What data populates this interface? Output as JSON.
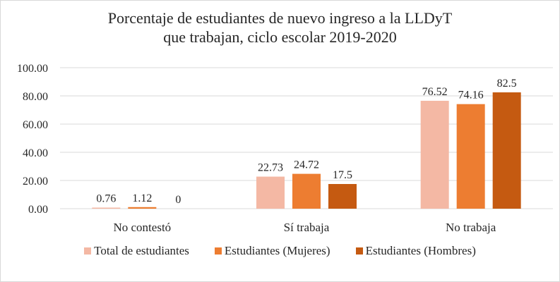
{
  "chart_data": {
    "type": "bar",
    "title_lines": [
      "Porcentaje de estudiantes de nuevo ingreso a la LLDyT",
      "que trabajan, ciclo escolar 2019-2020"
    ],
    "categories": [
      "No contestó",
      "Sí trabaja",
      "No trabaja"
    ],
    "series": [
      {
        "name": "Total de estudiantes",
        "color": "#F4B8A4",
        "values": [
          0.76,
          22.73,
          76.52
        ],
        "labels": [
          "0.76",
          "22.73",
          "76.52"
        ]
      },
      {
        "name": "Estudiantes (Mujeres)",
        "color": "#ED7D31",
        "values": [
          1.12,
          24.72,
          74.16
        ],
        "labels": [
          "1.12",
          "24.72",
          "74.16"
        ]
      },
      {
        "name": "Estudiantes (Hombres)",
        "color": "#C55A11",
        "values": [
          0,
          17.5,
          82.5
        ],
        "labels": [
          "0",
          "17.5",
          "82.5"
        ]
      }
    ],
    "xlabel": "",
    "ylabel": "",
    "ylim": [
      0,
      100
    ],
    "yticks": [
      "0.00",
      "20.00",
      "40.00",
      "60.00",
      "80.00",
      "100.00"
    ],
    "grid": true,
    "legend_position": "bottom"
  }
}
